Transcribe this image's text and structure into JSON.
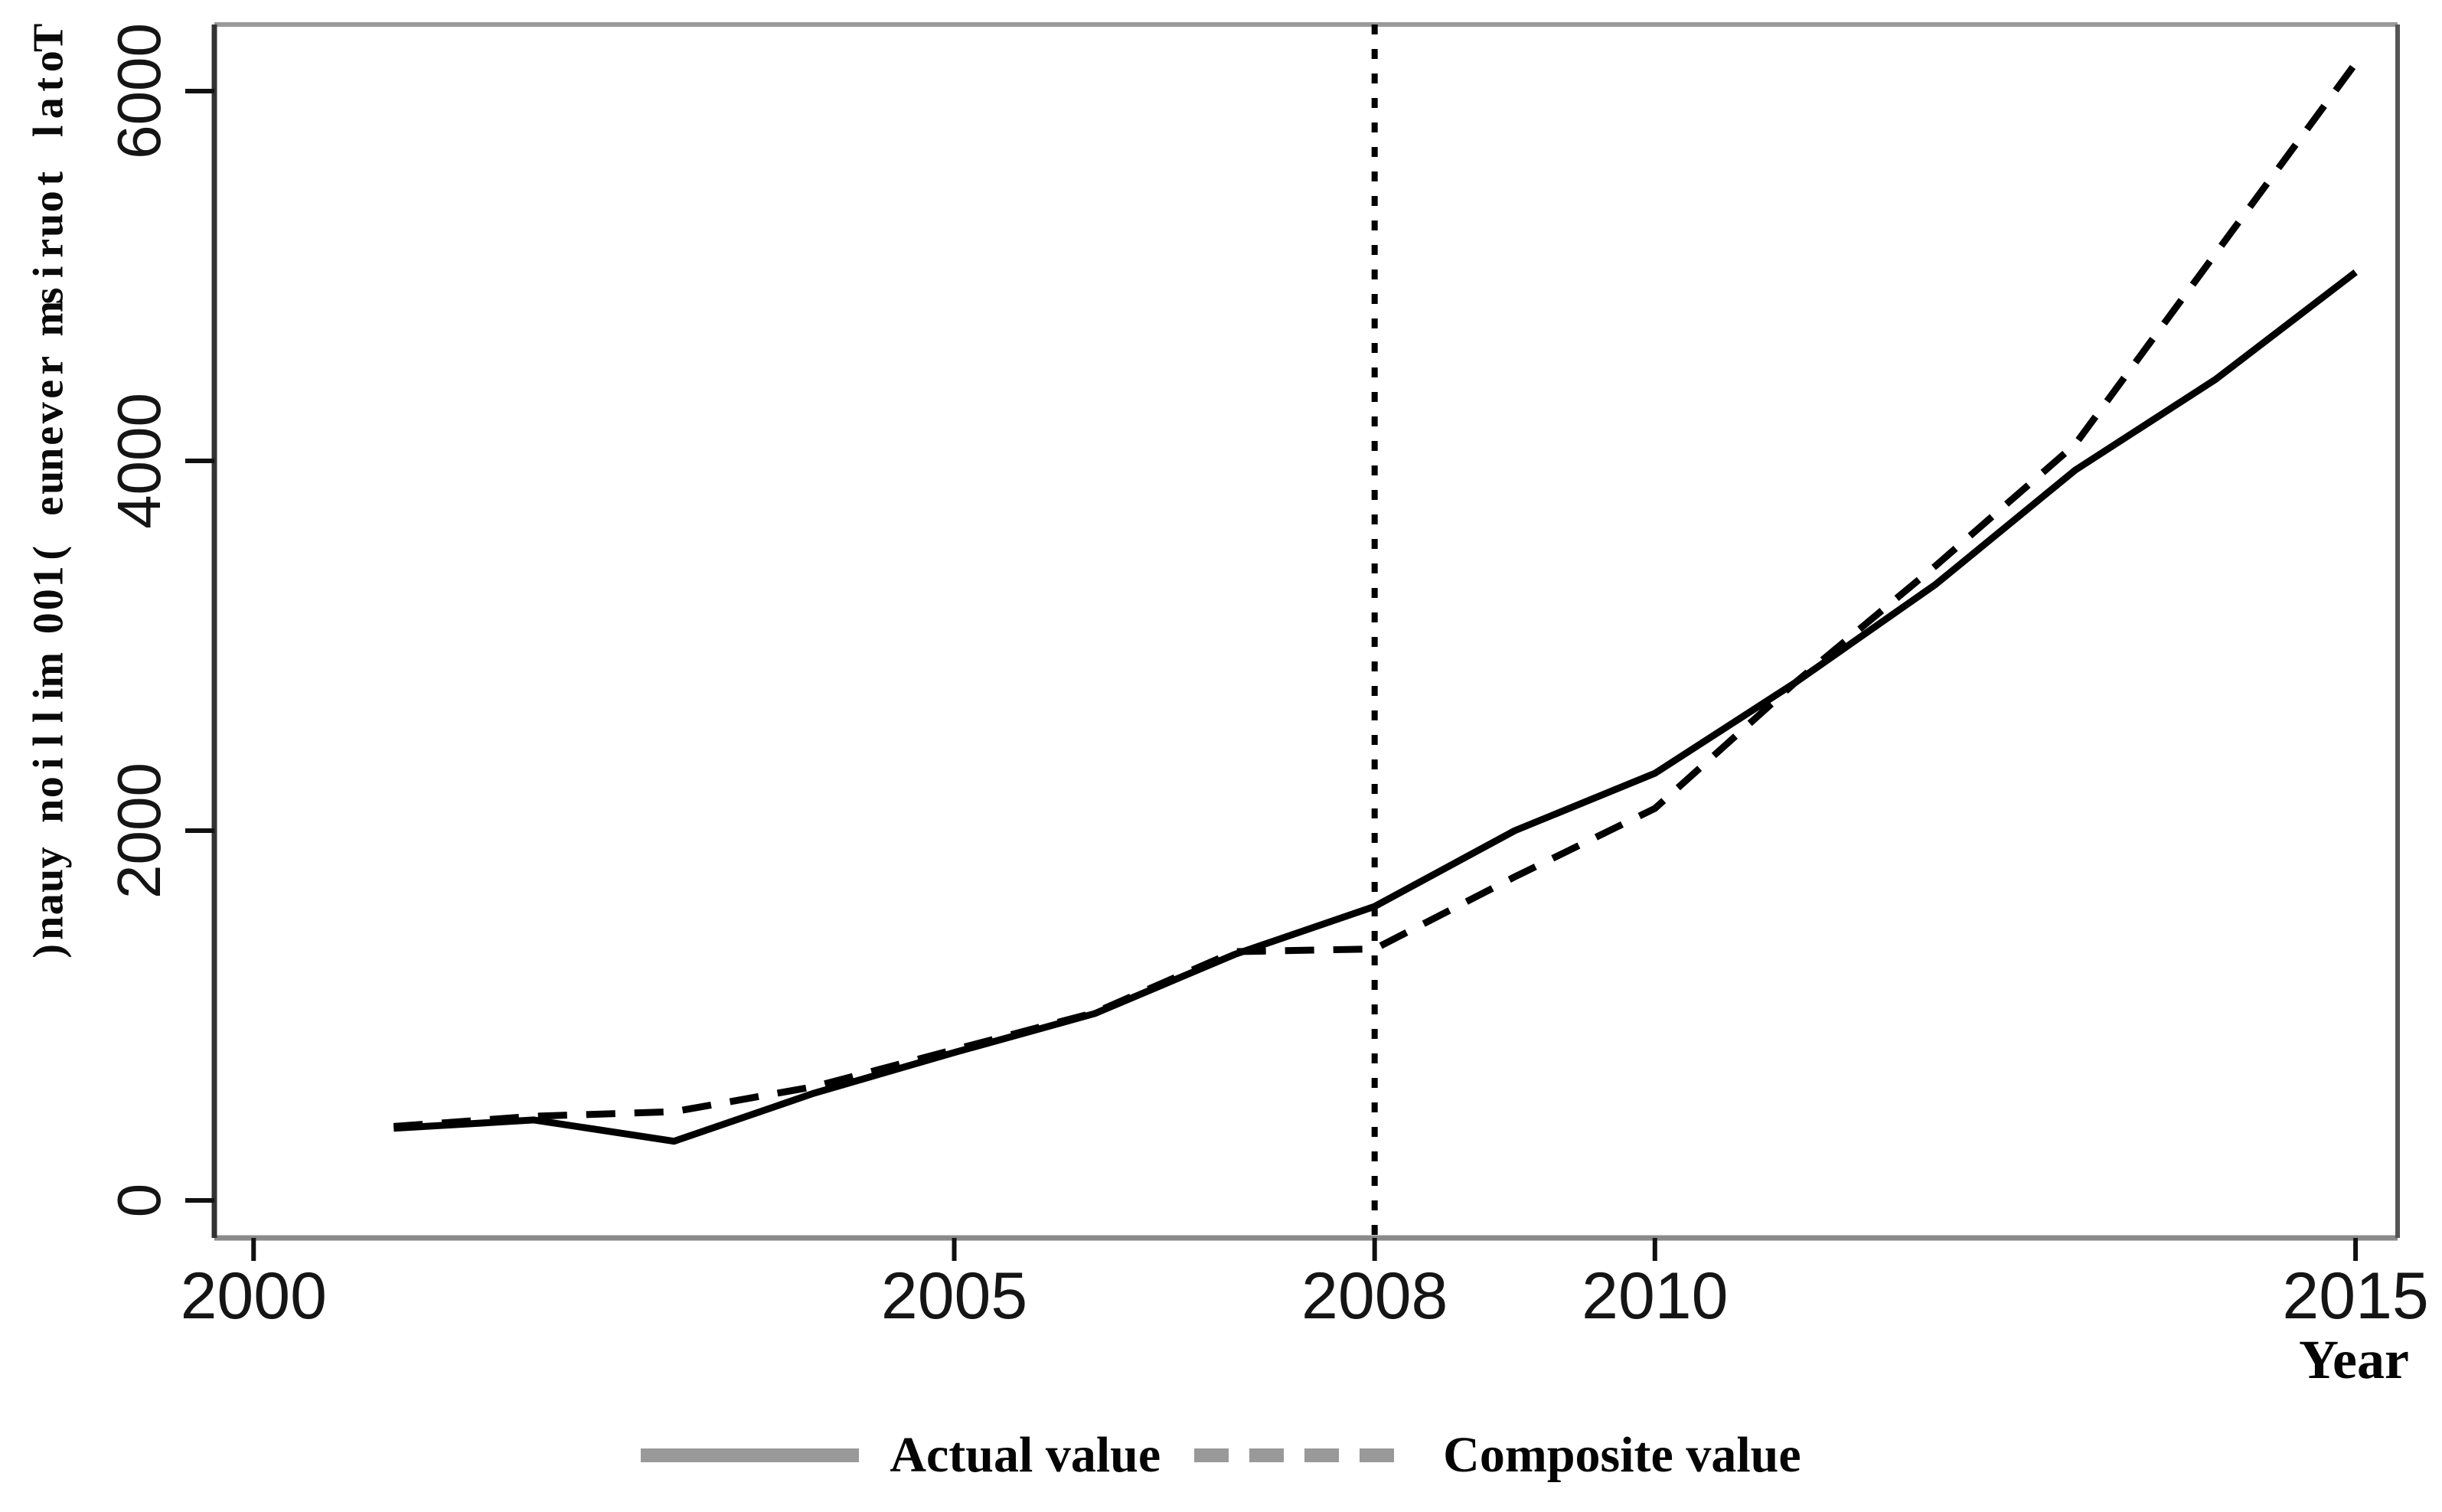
{
  "figure": {
    "ylabel": "Total tourism revenue (100 million yuan)",
    "xlabel": "Year",
    "legend": [
      {
        "label": "Actual value",
        "style": "solid"
      },
      {
        "label": "Composite value",
        "style": "dashed"
      }
    ],
    "colors": {
      "line": "#000000",
      "legend_swatch": "#999999",
      "frame_top": "#9a9a9a",
      "frame_bottom": "#8a8a8a",
      "frame_left": "#333333",
      "frame_right": "#555555",
      "tick": "#111111",
      "background": "#ffffff"
    }
  },
  "chart_data": {
    "type": "line",
    "x": [
      2001,
      2002,
      2003,
      2004,
      2005,
      2006,
      2007,
      2008,
      2009,
      2010,
      2011,
      2012,
      2013,
      2014,
      2015
    ],
    "series": [
      {
        "name": "Actual value",
        "style": "solid",
        "values": [
          390,
          435,
          320,
          580,
          800,
          1010,
          1330,
          1590,
          2000,
          2310,
          2800,
          3330,
          3950,
          4440,
          5020
        ]
      },
      {
        "name": "Composite value",
        "style": "dashed",
        "values": [
          400,
          455,
          480,
          615,
          815,
          1015,
          1345,
          1360,
          1750,
          2120,
          2800,
          3430,
          4090,
          5120,
          6150
        ]
      }
    ],
    "title": "",
    "xlabel": "Year",
    "ylabel": "Total tourism revenue (100 million yuan)",
    "x_ticks": [
      2000,
      2005,
      2008,
      2010,
      2015
    ],
    "y_ticks": [
      0,
      2000,
      4000,
      6000
    ],
    "xlim": [
      1999.72,
      2015.3
    ],
    "ylim": [
      -203,
      6360
    ],
    "vline_x": 2008,
    "vline_style": "dotted",
    "grid": false,
    "legend_position": "bottom"
  }
}
